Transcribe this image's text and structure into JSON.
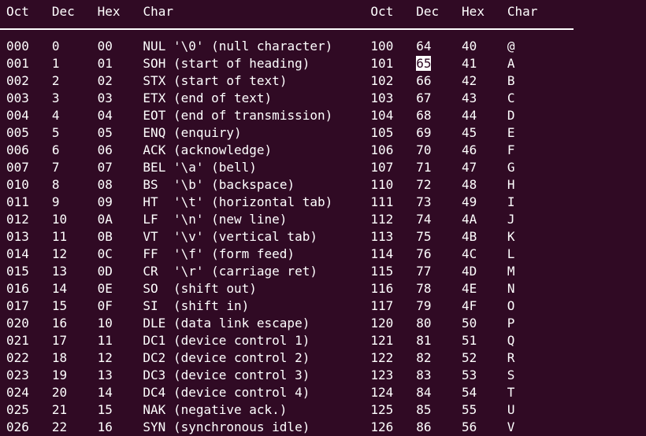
{
  "colors": {
    "background": "#300a24",
    "foreground": "#ffffff",
    "divider": "#ffffff",
    "highlight_background": "#ffffff",
    "highlight_foreground": "#300a24"
  },
  "table": {
    "headers": [
      "Oct",
      "Dec",
      "Hex",
      "Char"
    ],
    "layout": {
      "field_widths": [
        6,
        6,
        6,
        30,
        6,
        6,
        6,
        0
      ]
    },
    "highlight": {
      "row_index": 1,
      "side": "right",
      "field": "dec",
      "value_shown": "65"
    },
    "left_rows": [
      {
        "oct": "000",
        "dec": "0",
        "hex": "00",
        "char": "NUL '\\0' (null character)"
      },
      {
        "oct": "001",
        "dec": "1",
        "hex": "01",
        "char": "SOH (start of heading)"
      },
      {
        "oct": "002",
        "dec": "2",
        "hex": "02",
        "char": "STX (start of text)"
      },
      {
        "oct": "003",
        "dec": "3",
        "hex": "03",
        "char": "ETX (end of text)"
      },
      {
        "oct": "004",
        "dec": "4",
        "hex": "04",
        "char": "EOT (end of transmission)"
      },
      {
        "oct": "005",
        "dec": "5",
        "hex": "05",
        "char": "ENQ (enquiry)"
      },
      {
        "oct": "006",
        "dec": "6",
        "hex": "06",
        "char": "ACK (acknowledge)"
      },
      {
        "oct": "007",
        "dec": "7",
        "hex": "07",
        "char": "BEL '\\a' (bell)"
      },
      {
        "oct": "010",
        "dec": "8",
        "hex": "08",
        "char": "BS  '\\b' (backspace)"
      },
      {
        "oct": "011",
        "dec": "9",
        "hex": "09",
        "char": "HT  '\\t' (horizontal tab)"
      },
      {
        "oct": "012",
        "dec": "10",
        "hex": "0A",
        "char": "LF  '\\n' (new line)"
      },
      {
        "oct": "013",
        "dec": "11",
        "hex": "0B",
        "char": "VT  '\\v' (vertical tab)"
      },
      {
        "oct": "014",
        "dec": "12",
        "hex": "0C",
        "char": "FF  '\\f' (form feed)"
      },
      {
        "oct": "015",
        "dec": "13",
        "hex": "0D",
        "char": "CR  '\\r' (carriage ret)"
      },
      {
        "oct": "016",
        "dec": "14",
        "hex": "0E",
        "char": "SO  (shift out)"
      },
      {
        "oct": "017",
        "dec": "15",
        "hex": "0F",
        "char": "SI  (shift in)"
      },
      {
        "oct": "020",
        "dec": "16",
        "hex": "10",
        "char": "DLE (data link escape)"
      },
      {
        "oct": "021",
        "dec": "17",
        "hex": "11",
        "char": "DC1 (device control 1)"
      },
      {
        "oct": "022",
        "dec": "18",
        "hex": "12",
        "char": "DC2 (device control 2)"
      },
      {
        "oct": "023",
        "dec": "19",
        "hex": "13",
        "char": "DC3 (device control 3)"
      },
      {
        "oct": "024",
        "dec": "20",
        "hex": "14",
        "char": "DC4 (device control 4)"
      },
      {
        "oct": "025",
        "dec": "21",
        "hex": "15",
        "char": "NAK (negative ack.)"
      },
      {
        "oct": "026",
        "dec": "22",
        "hex": "16",
        "char": "SYN (synchronous idle)"
      }
    ],
    "right_rows": [
      {
        "oct": "100",
        "dec": "64",
        "hex": "40",
        "char": "@"
      },
      {
        "oct": "101",
        "dec": "65",
        "hex": "41",
        "char": "A"
      },
      {
        "oct": "102",
        "dec": "66",
        "hex": "42",
        "char": "B"
      },
      {
        "oct": "103",
        "dec": "67",
        "hex": "43",
        "char": "C"
      },
      {
        "oct": "104",
        "dec": "68",
        "hex": "44",
        "char": "D"
      },
      {
        "oct": "105",
        "dec": "69",
        "hex": "45",
        "char": "E"
      },
      {
        "oct": "106",
        "dec": "70",
        "hex": "46",
        "char": "F"
      },
      {
        "oct": "107",
        "dec": "71",
        "hex": "47",
        "char": "G"
      },
      {
        "oct": "110",
        "dec": "72",
        "hex": "48",
        "char": "H"
      },
      {
        "oct": "111",
        "dec": "73",
        "hex": "49",
        "char": "I"
      },
      {
        "oct": "112",
        "dec": "74",
        "hex": "4A",
        "char": "J"
      },
      {
        "oct": "113",
        "dec": "75",
        "hex": "4B",
        "char": "K"
      },
      {
        "oct": "114",
        "dec": "76",
        "hex": "4C",
        "char": "L"
      },
      {
        "oct": "115",
        "dec": "77",
        "hex": "4D",
        "char": "M"
      },
      {
        "oct": "116",
        "dec": "78",
        "hex": "4E",
        "char": "N"
      },
      {
        "oct": "117",
        "dec": "79",
        "hex": "4F",
        "char": "O"
      },
      {
        "oct": "120",
        "dec": "80",
        "hex": "50",
        "char": "P"
      },
      {
        "oct": "121",
        "dec": "81",
        "hex": "51",
        "char": "Q"
      },
      {
        "oct": "122",
        "dec": "82",
        "hex": "52",
        "char": "R"
      },
      {
        "oct": "123",
        "dec": "83",
        "hex": "53",
        "char": "S"
      },
      {
        "oct": "124",
        "dec": "84",
        "hex": "54",
        "char": "T"
      },
      {
        "oct": "125",
        "dec": "85",
        "hex": "55",
        "char": "U"
      },
      {
        "oct": "126",
        "dec": "86",
        "hex": "56",
        "char": "V"
      }
    ]
  }
}
